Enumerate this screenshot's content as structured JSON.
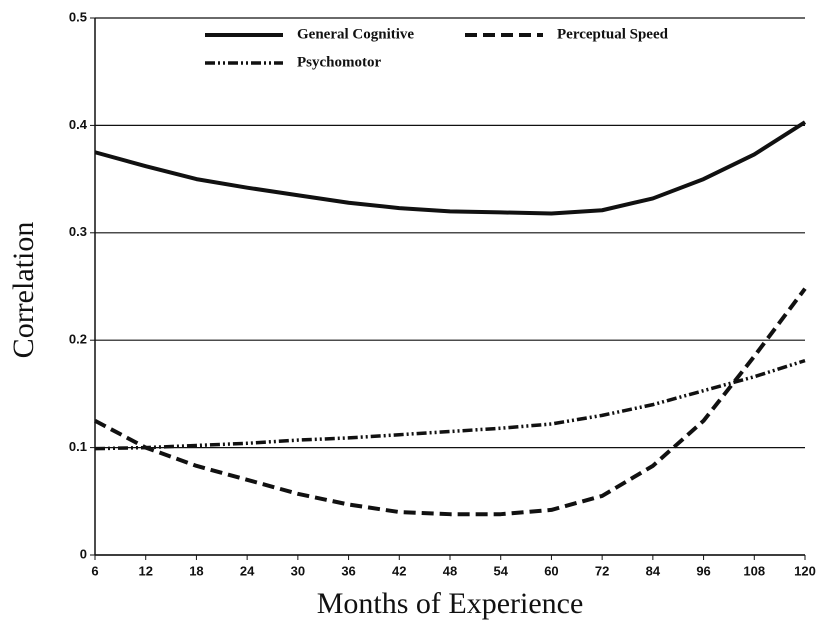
{
  "chart_data": {
    "type": "line",
    "x_label": "Months of Experience",
    "y_label": "Correlation",
    "categories": [
      "6",
      "12",
      "18",
      "24",
      "30",
      "36",
      "42",
      "48",
      "54",
      "60",
      "72",
      "84",
      "96",
      "108",
      "120"
    ],
    "ylim": [
      0,
      0.5
    ],
    "yticks": [
      0,
      0.1,
      0.2,
      0.3,
      0.4,
      0.5
    ],
    "grid": true,
    "legend": "upper center",
    "series": [
      {
        "name": "General Cognitive",
        "color": "#111111",
        "style": "solid",
        "values": [
          0.375,
          0.362,
          0.35,
          0.342,
          0.335,
          0.328,
          0.323,
          0.32,
          0.319,
          0.318,
          0.321,
          0.332,
          0.35,
          0.373,
          0.403
        ]
      },
      {
        "name": "Perceptual Speed",
        "color": "#111111",
        "style": "dashed",
        "values": [
          0.125,
          0.1,
          0.083,
          0.07,
          0.057,
          0.047,
          0.04,
          0.038,
          0.038,
          0.042,
          0.055,
          0.083,
          0.125,
          0.185,
          0.248
        ]
      },
      {
        "name": "Psychomotor",
        "color": "#111111",
        "style": "dashdot",
        "values": [
          0.099,
          0.1,
          0.102,
          0.104,
          0.107,
          0.109,
          0.112,
          0.115,
          0.118,
          0.122,
          0.13,
          0.14,
          0.153,
          0.166,
          0.181
        ]
      }
    ]
  }
}
